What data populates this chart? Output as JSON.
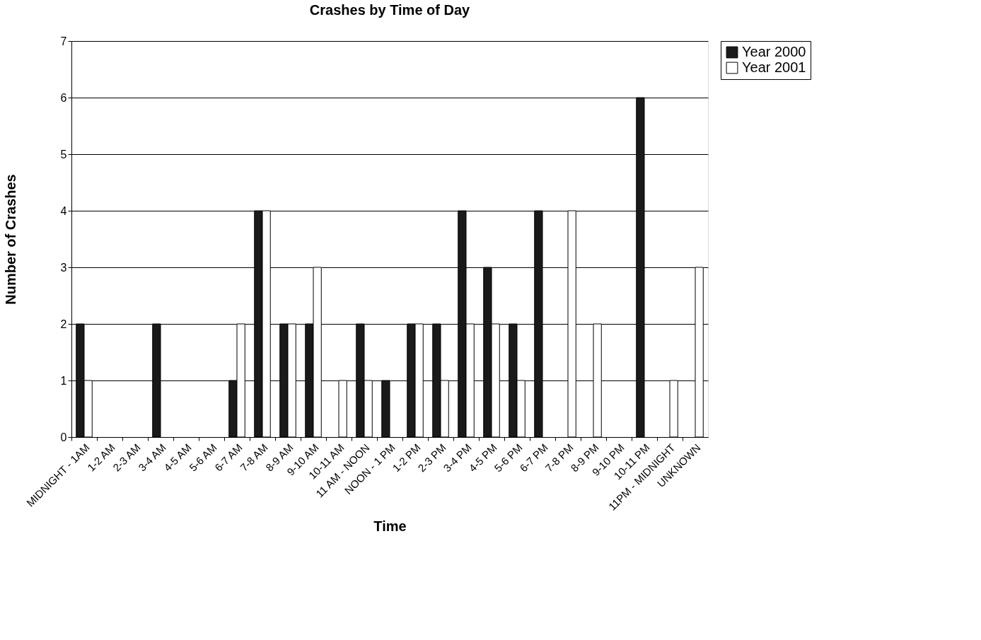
{
  "chart_data": {
    "type": "bar",
    "title": "Crashes by Time of Day",
    "xlabel": "Time",
    "ylabel": "Number of Crashes",
    "categories": [
      "MIDNIGHT - 1AM",
      "1-2 AM",
      "2-3 AM",
      "3-4 AM",
      "4-5 AM",
      "5-6 AM",
      "6-7 AM",
      "7-8 AM",
      "8-9 AM",
      "9-10 AM",
      "10-11 AM",
      "11 AM - NOON",
      "NOON - 1 PM",
      "1-2 PM",
      "2-3 PM",
      "3-4 PM",
      "4-5 PM",
      "5-6 PM",
      "6-7 PM",
      "7-8 PM",
      "8-9 PM",
      "9-10 PM",
      "10-11 PM",
      "11PM - MIDNIGHT",
      "UNKNOWN"
    ],
    "series": [
      {
        "name": "Year 2000",
        "color": "#1a1a1a",
        "values": [
          2,
          0,
          0,
          2,
          0,
          0,
          1,
          4,
          2,
          2,
          0,
          2,
          1,
          2,
          2,
          4,
          3,
          2,
          4,
          0,
          0,
          0,
          6,
          0,
          0
        ]
      },
      {
        "name": "Year 2001",
        "color": "#ffffff",
        "values": [
          1,
          0,
          0,
          0,
          0,
          0,
          2,
          4,
          2,
          3,
          1,
          1,
          0,
          2,
          1,
          2,
          2,
          1,
          0,
          4,
          2,
          0,
          0,
          1,
          3
        ]
      }
    ],
    "ylim": [
      0,
      7
    ],
    "yticks": [
      0,
      1,
      2,
      3,
      4,
      5,
      6,
      7
    ],
    "grid": "y",
    "legend": "right"
  }
}
